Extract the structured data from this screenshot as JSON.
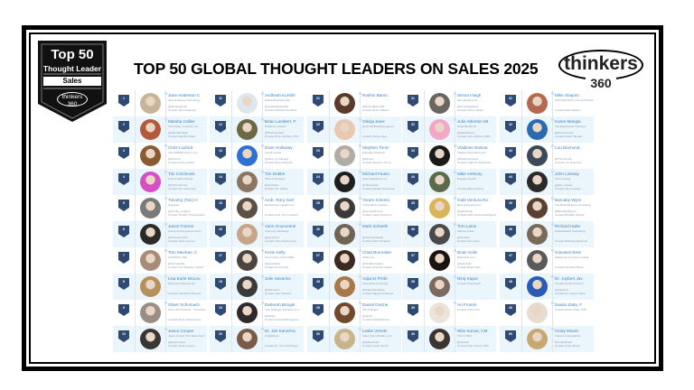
{
  "header": {
    "title": "TOP 50 GLOBAL THOUGHT LEADERS ON SALES  2025",
    "badge": {
      "top": "Top 50",
      "subtitle": "Thought Leader",
      "category": "Sales",
      "logo_small": "thinkers 360"
    },
    "logo": {
      "word": "thinkers",
      "number": "360"
    }
  },
  "colors": {
    "rank_badge": "#2f4a72",
    "name_link": "#3f83c3",
    "row_alt_bg": "#eaf5fc",
    "frame": "#000000"
  },
  "leaders": [
    {
      "rank": "1",
      "name": "Jane Anderson C",
      "org": "Jane Anderson Consulting",
      "handle": "@janeanderson",
      "contact": "Contact Jane Anderson",
      "photo": "#c7b49a"
    },
    {
      "rank": "2",
      "name": "Marsha Collier",
      "org": "The Collier Company, Inc",
      "handle": "@MarshaCollier",
      "contact": "Contact Marsha Collier",
      "photo": "#b45a3c"
    },
    {
      "rank": "3",
      "name": "Chris Luxford",
      "org": "The KOPRE Group, LLC",
      "handle": "@cluxford",
      "contact": "Contact Chris Luxford",
      "photo": "#8a5a30"
    },
    {
      "rank": "4",
      "name": "Tim Corrinovis",
      "org": "Future Sales Society",
      "handle": "@TimCorrinovis",
      "contact": "Contact Tim Corrinovis",
      "photo": "#d64fc4"
    },
    {
      "rank": "5",
      "name": "Timothy (Tim) H",
      "org": "Enargiea",
      "handle": "@timothy_hughes",
      "contact": "Contact Timothy (Tim) Hughes",
      "photo": "#7a7a7a"
    },
    {
      "rank": "6",
      "name": "Jason Forrest",
      "org": "Forrest Performance Group",
      "handle": "@forrestperform",
      "contact": "Contact Jason Forrest",
      "photo": "#2c2a28"
    },
    {
      "rank": "7",
      "name": "Tom Meehan, C",
      "org": "CONTROL TEC",
      "handle": "@tommeehan",
      "contact": "Contact Tom Meehan, CISSP",
      "photo": "#a88c7a"
    },
    {
      "rank": "8",
      "name": "Lisa Earle McLeo",
      "org": "McLeod & McLeod Inc",
      "handle": "",
      "contact": "Contact Lisa Earle McLeod",
      "photo": "#b8905a"
    },
    {
      "rank": "9",
      "name": "Oliver Schumach",
      "org": "Oliver Schumacher - Verkaufen",
      "handle": "",
      "contact": "Contact Oliver Schumacher",
      "photo": "#9a8f86"
    },
    {
      "rank": "10",
      "name": "Jason Cooper",
      "org": "Jason Cooper The Sales Nerd",
      "handle": "@jasoncooper",
      "contact": "Contact Jason Cooper",
      "photo": "#3a3634"
    },
    {
      "rank": "11",
      "name": "Avdhesh Kumbh",
      "org": "Global Business Hub",
      "handle": "@avdheshkumbhar",
      "contact": "Contact Avdhesh Kumbhar",
      "photo": "#dfe7ee"
    },
    {
      "rank": "12",
      "name": "Brian Lambert, P",
      "org": "Digital Command",
      "handle": "@BrianLambert",
      "contact": "Contact Brian Lambert, PhD",
      "photo": "#6b6a45"
    },
    {
      "rank": "13",
      "name": "Dave Holloway",
      "org": "Kinetic Leads",
      "handle": "@dave_d_holloway",
      "contact": "Contact Dave Holloway",
      "photo": "#2f6fd6"
    },
    {
      "rank": "14",
      "name": "Tim Dobbe",
      "org": "Value Interaction",
      "handle": "@timdobbe",
      "contact": "Contact Tim Dobbe",
      "photo": "#8b7460"
    },
    {
      "rank": "15",
      "name": "Amb. Terry Gerl",
      "org": "Evolutionary Leader LLC",
      "handle": "",
      "contact": "Contact Amb. Terry Gerlach",
      "photo": "#5a5046"
    },
    {
      "rank": "16",
      "name": "Yann Gourvenne",
      "org": "Visionary Marketing",
      "handle": "@ygourven",
      "contact": "Contact Yann Gourvennec",
      "photo": "#c6a58a"
    },
    {
      "rank": "17",
      "name": "Kevin Kelly",
      "org": "Kevin Kelly LOGICVIBE",
      "handle": "@kevinrkelly",
      "contact": "Contact Kevin Kelly",
      "photo": "#4a4540"
    },
    {
      "rank": "18",
      "name": "Julie Savarino",
      "org": "",
      "handle": "@JSavarino",
      "contact": "Contact Julie Savarino",
      "photo": "#3a3a3a"
    },
    {
      "rank": "19",
      "name": "Deborah Bringel",
      "org": "Your Strategic Solutions LLC",
      "handle": "@dsbsol",
      "contact": "Contact Deborah Bringelson",
      "photo": "#2e2a2c"
    },
    {
      "rank": "20",
      "name": "Dr. Jim Kanichra",
      "org": "CogitaTeam",
      "handle": "",
      "contact": "Contact Dr. Jim Kanichirayil",
      "photo": "#7a5a48"
    },
    {
      "rank": "21",
      "name": "Roshni Baron",
      "org": "",
      "handle": "@RoshniBaronUK",
      "contact": "Contact Roshni Baron",
      "photo": "#5a3a2a"
    },
    {
      "rank": "22",
      "name": "Olesja Save",
      "org": "Personal Branding Agency",
      "handle": "",
      "contact": "Contact Olesja Save",
      "photo": "#e8c9b0"
    },
    {
      "rank": "23",
      "name": "Stephen Timm",
      "org": "Foundrie Solutions",
      "handle": "@stimms",
      "contact": "Contact Stephen Timms",
      "photo": "#b0aca6"
    },
    {
      "rank": "24",
      "name": "Michael Fauso",
      "org": "Anton Research LLC",
      "handle": "@mfauscette",
      "contact": "Contact Michael Fauscette",
      "photo": "#1e1e1e"
    },
    {
      "rank": "25",
      "name": "Yoram Solomo",
      "org": "Trust Habits Institute",
      "handle": "@yoramsolomon",
      "contact": "Contact Yoram Solomon",
      "photo": "#3a3a3a"
    },
    {
      "rank": "26",
      "name": "Mark Schaefe",
      "org": "",
      "handle": "@markwschaefer",
      "contact": "Contact Mark Schaefer",
      "photo": "#6f6455"
    },
    {
      "rank": "27",
      "name": "Chad Burmaste",
      "org": "Influencer",
      "handle": "@chadburmaster",
      "contact": "Contact Chad Burmaster",
      "photo": "#3b2a20"
    },
    {
      "rank": "28",
      "name": "Adjunct Profe",
      "org": "Federation University",
      "handle": "@adjunctprofessor",
      "contact": "Contact Adjunct Professor",
      "photo": "#a8784a"
    },
    {
      "rank": "29",
      "name": "Daniel Dische",
      "org": "ISG Software",
      "handle": "@daniel",
      "contact": "Contact Daniel Discher",
      "photo": "#6f4a2e"
    },
    {
      "rank": "30",
      "name": "Leslie Venetz",
      "org": "Sales Team Builder, LLC",
      "handle": "@leslievenetz",
      "contact": "Contact Leslie Venetz",
      "photo": "#c9b48a"
    },
    {
      "rank": "31",
      "name": "Simon Haigh",
      "org": "Simonhaigh.com",
      "handle": "@simonhaighcom",
      "contact": "Contact Simon Haigh",
      "photo": "#6a6560"
    },
    {
      "rank": "32",
      "name": "Julie Atherton MI",
      "org": "Small World Ltd",
      "handle": "@julieatherton",
      "contact": "Contact Julie Atherton MBA",
      "photo": "#f2a6c8"
    },
    {
      "rank": "33",
      "name": "Vladimer Botsva",
      "org": "Vladimerbotsvadze.com",
      "handle": "@vladimerbotsva",
      "contact": "Contact Vladimer Botsvadze",
      "photo": "#1a1a1a"
    },
    {
      "rank": "34",
      "name": "Mike Anthony",
      "org": "Engage Growth",
      "handle": "",
      "contact": "Contact Mike Anthony",
      "photo": "#5a6a4a"
    },
    {
      "rank": "35",
      "name": "Gabi Ventura Ro",
      "org": "Bam Empowering U",
      "handle": "@gabiroman",
      "contact": "Contact Gabi Ventura Rodriguez",
      "photo": "#d9b45a"
    },
    {
      "rank": "36",
      "name": "Tom Laine",
      "org": "Marina Linden",
      "handle": "@tomlaine",
      "contact": "Contact Tom Laine",
      "photo": "#4a4a4a"
    },
    {
      "rank": "37",
      "name": "Brian Solis",
      "org": "Briansolis.com",
      "handle": "@briansolis",
      "contact": "Contact Brian Solis",
      "photo": "#1a1410"
    },
    {
      "rank": "38",
      "name": "Niraj Kapur",
      "org": "Contact Niraj Kapur",
      "handle": "",
      "contact": "",
      "photo": "#7a6a60"
    },
    {
      "rank": "39",
      "name": "Ari Fromm",
      "org": "Contact Ari Fromm",
      "handle": "",
      "contact": "",
      "photo": "#eae4dc"
    },
    {
      "rank": "40",
      "name": "Nitin Kumar, CM",
      "org": "The IT Mind",
      "handle": "@nkumar",
      "contact": "Contact Nitin Kumar, CMA",
      "photo": "#3a3530"
    },
    {
      "rank": "41",
      "name": "Mike Shapiro",
      "org": "OPPORTUNITY Lab and Partners",
      "handle": "",
      "contact": "Contact Mike Shapiro",
      "photo": "#b46a50"
    },
    {
      "rank": "42",
      "name": "Karen Mangia",
      "org": "The Engineered Visionary",
      "handle": "@karenmangia",
      "contact": "Contact Karen Mangia",
      "photo": "#2a6ab0"
    },
    {
      "rank": "43",
      "name": "Lou Diamond,",
      "org": "",
      "handle": "@ThriveLouD",
      "contact": "Contact Lou Diamond",
      "photo": "#3a4a5a"
    },
    {
      "rank": "44",
      "name": "John Livesay",
      "org": "John Livesay",
      "handle": "@john_livesay",
      "contact": "Contact John Livesay",
      "photo": "#2a2a2a"
    },
    {
      "rank": "45",
      "name": "Barnaby Wynt",
      "org": "The Brand Bureau Consulting",
      "handle": "@BarnabyWynter",
      "contact": "Contact Barnaby Wynter",
      "photo": "#5a4030"
    },
    {
      "rank": "46",
      "name": "Richard Habe",
      "org": "Global Reach Technology",
      "handle": "",
      "contact": "Contact Richard Haberman",
      "photo": "#7a6a5a"
    },
    {
      "rank": "47",
      "name": "Giovanni Bree",
      "org": "Marketing & Content Leader",
      "handle": "",
      "contact": "Contact Giovanni Breeo",
      "photo": "#5a5a5a"
    },
    {
      "rank": "48",
      "name": "Dr. Joybert Jav",
      "org": "Credell Global Inclusive",
      "handle": "@drjoybert",
      "contact": "Contact Dr. Joybert Javier",
      "photo": "#2a5ab8"
    },
    {
      "rank": "49",
      "name": "Danilo Zatta, F",
      "org": "Contact Danilo Zatta, PhD",
      "handle": "",
      "contact": "",
      "photo": "#e6dcd0"
    },
    {
      "rank": "50",
      "name": "Cindy Mourn",
      "org": "Traction International",
      "handle": "@CindyMourn",
      "contact": "Contact Cindy Mourn",
      "photo": "#c9a870"
    }
  ]
}
